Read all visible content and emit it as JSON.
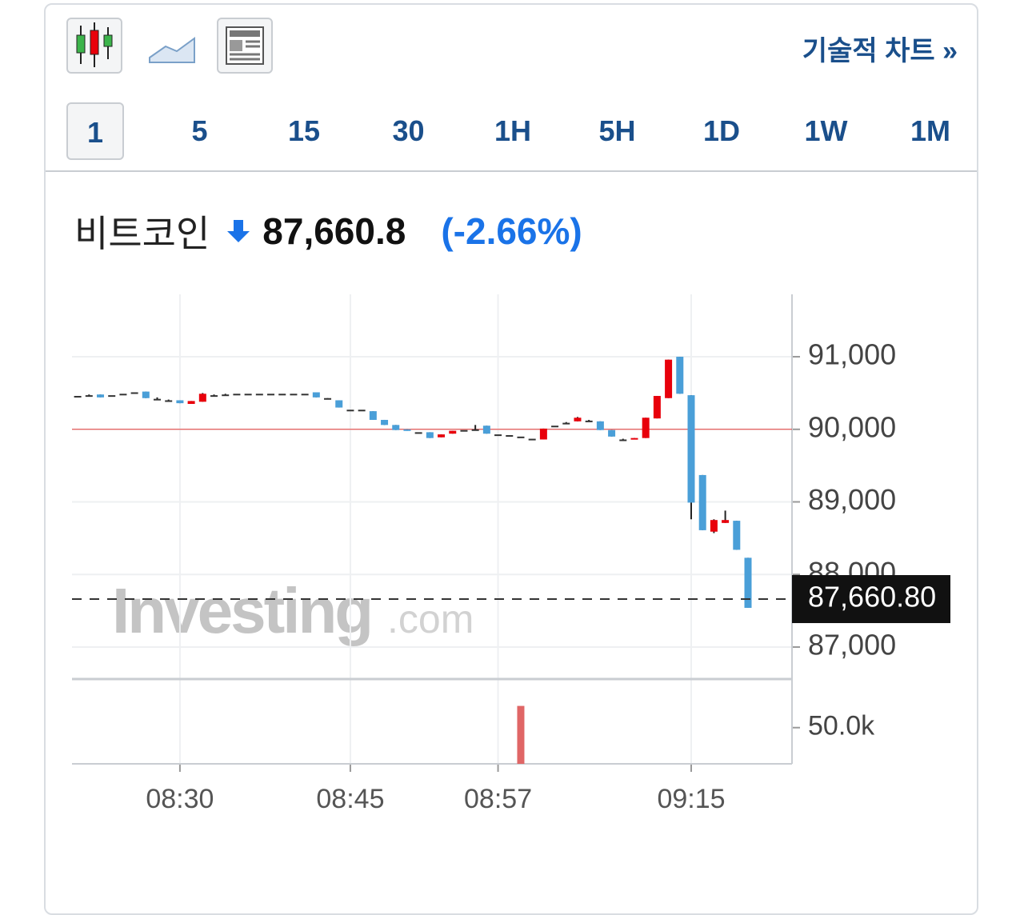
{
  "toolbar": {
    "link": "기술적 차트 »"
  },
  "timeframes": [
    "1",
    "5",
    "15",
    "30",
    "1H",
    "5H",
    "1D",
    "1W",
    "1M"
  ],
  "header": {
    "name": "비트코인",
    "price": "87,660.8",
    "change": "(-2.66%)"
  },
  "chart_data": {
    "type": "candlestick",
    "watermark": [
      "Investing",
      ".com"
    ],
    "categories": [
      null,
      null,
      null,
      null,
      null,
      null,
      null,
      null,
      null,
      "08:30",
      null,
      null,
      null,
      null,
      null,
      null,
      null,
      null,
      null,
      null,
      null,
      null,
      null,
      null,
      "08:45",
      null,
      null,
      null,
      null,
      null,
      null,
      null,
      null,
      null,
      null,
      null,
      null,
      "08:57",
      null,
      null,
      null,
      null,
      null,
      null,
      null,
      null,
      null,
      null,
      null,
      null,
      null,
      null,
      null,
      null,
      "09:15",
      null,
      null,
      null,
      null,
      null
    ],
    "open": [
      90460,
      90470,
      90480,
      90470,
      90490,
      90510,
      90520,
      90420,
      90400,
      90400,
      90350,
      90380,
      90470,
      90480,
      90490,
      90490,
      90490,
      90490,
      90490,
      90490,
      90490,
      90510,
      90430,
      90400,
      90270,
      90270,
      90250,
      90130,
      90060,
      90000,
      89960,
      89960,
      89890,
      89940,
      89990,
      90000,
      90050,
      89930,
      89920,
      89900,
      89870,
      89860,
      90050,
      90090,
      90110,
      90120,
      90110,
      89990,
      89860,
      89860,
      89880,
      90150,
      90430,
      91000,
      90470,
      89370,
      88590,
      88710,
      88740,
      88230
    ],
    "high": [
      90460,
      90480,
      90480,
      90470,
      90490,
      90510,
      90520,
      90440,
      90410,
      90400,
      90390,
      90500,
      90480,
      90490,
      90490,
      90490,
      90490,
      90490,
      90490,
      90490,
      90490,
      90510,
      90430,
      90400,
      90270,
      90270,
      90250,
      90130,
      90060,
      90000,
      89960,
      89960,
      89930,
      89980,
      89990,
      90060,
      90050,
      89930,
      89920,
      89900,
      89870,
      90010,
      90050,
      90100,
      90170,
      90130,
      90110,
      89990,
      89870,
      89880,
      90160,
      90460,
      90960,
      91000,
      90470,
      89370,
      88760,
      88880,
      88740,
      88230
    ],
    "low": [
      90460,
      90460,
      90440,
      90470,
      90490,
      90500,
      90430,
      90410,
      90400,
      90360,
      90350,
      90380,
      90460,
      90470,
      90490,
      90490,
      90490,
      90490,
      90490,
      90490,
      90490,
      90440,
      90420,
      90300,
      90270,
      90270,
      90130,
      90060,
      89990,
      89980,
      89960,
      89880,
      89890,
      89940,
      89990,
      89990,
      89940,
      89930,
      89920,
      89900,
      89870,
      89860,
      90050,
      90080,
      90110,
      90110,
      89990,
      89900,
      89850,
      89860,
      89880,
      90150,
      90430,
      90490,
      88760,
      88610,
      88570,
      88710,
      88340,
      87540
    ],
    "close": [
      90460,
      90470,
      90440,
      90470,
      90490,
      90510,
      90430,
      90420,
      90400,
      90360,
      90390,
      90490,
      90470,
      90480,
      90490,
      90490,
      90490,
      90490,
      90490,
      90490,
      90490,
      90440,
      90430,
      90300,
      90270,
      90270,
      90130,
      90060,
      89990,
      89990,
      89960,
      89880,
      89930,
      89980,
      89990,
      90000,
      89940,
      89930,
      89920,
      89900,
      89870,
      90010,
      90050,
      90090,
      90160,
      90120,
      89990,
      89900,
      89860,
      89880,
      90160,
      90460,
      90960,
      90490,
      88990,
      88610,
      88750,
      88750,
      88340,
      87540
    ],
    "up_color": "#e8000b",
    "down_color": "#4a9fd8",
    "ylim": [
      86570,
      91860
    ],
    "yticks": [
      {
        "value": 87000,
        "label": "87,000"
      },
      {
        "value": 88000,
        "label": "88,000"
      },
      {
        "value": 89000,
        "label": "89,000"
      },
      {
        "value": 90000,
        "label": "90,000"
      },
      {
        "value": 91000,
        "label": "91,000"
      }
    ],
    "reference_line": {
      "value": 90000,
      "color": "#e53935"
    },
    "last": {
      "value": 87660.8,
      "label": "87,660.80"
    },
    "volume": {
      "values": [
        0,
        0,
        0,
        0,
        0,
        0,
        0,
        0,
        0,
        0,
        0,
        0,
        0,
        0,
        0,
        0,
        0,
        0,
        0,
        0,
        0,
        0,
        0,
        0,
        0,
        0,
        0,
        0,
        0,
        0,
        0,
        0,
        0,
        0,
        0,
        0,
        0,
        0,
        0,
        80000,
        0,
        0,
        0,
        0,
        0,
        0,
        0,
        0,
        0,
        0,
        0,
        0,
        0,
        0,
        0,
        0,
        0,
        0,
        0,
        0
      ],
      "color": "#e06666",
      "ylim": [
        0,
        116000
      ],
      "yticks": [
        {
          "value": 50000,
          "label": "50.0k"
        }
      ]
    },
    "grid": true
  }
}
